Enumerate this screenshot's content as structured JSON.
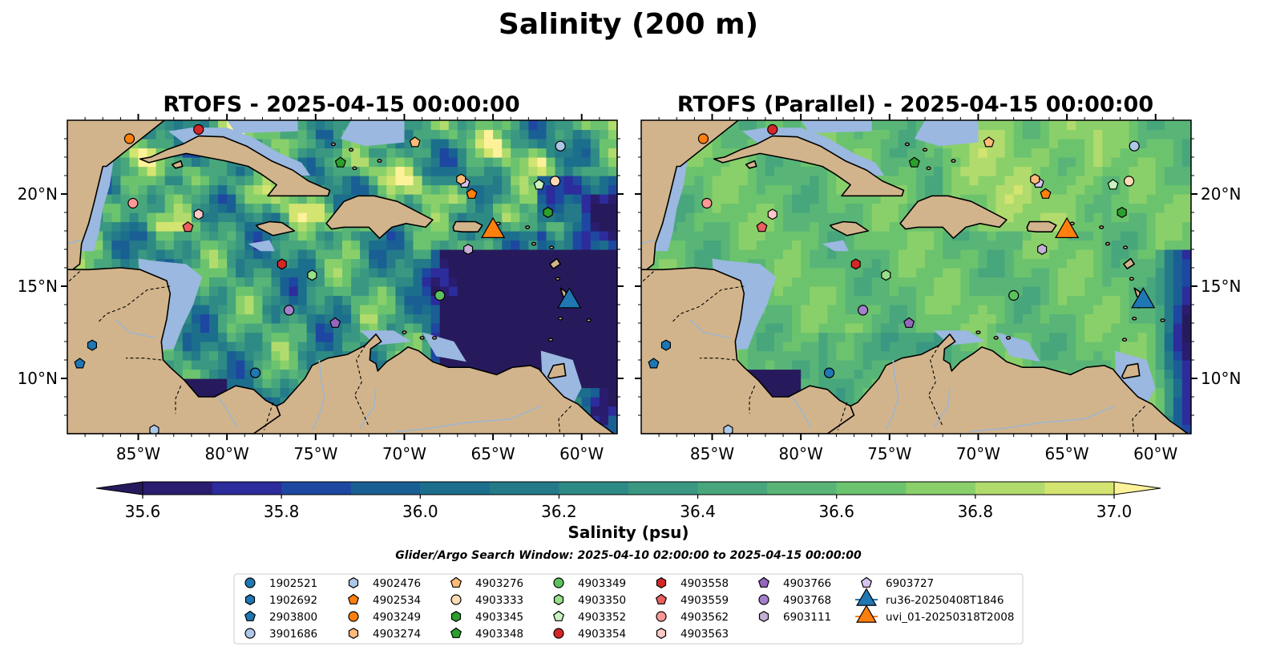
{
  "figure": {
    "title": "Salinity (200 m)",
    "search_window": "Glider/Argo Search Window: 2025-04-10 02:00:00 to 2025-04-15 00:00:00"
  },
  "colors": {
    "land": "#d2b48c",
    "shallow_water": "#9ab8e0",
    "coast": "#000000",
    "river": "#9fb6cc"
  },
  "colorbar": {
    "label": "Salinity (psu)",
    "min": 35.6,
    "max": 37.0,
    "step": 0.1,
    "ticks": [
      "35.6",
      "35.8",
      "36.0",
      "36.2",
      "36.4",
      "36.6",
      "36.8",
      "37.0"
    ],
    "colors": [
      "#2a1c6e",
      "#2c2c9c",
      "#1d47a0",
      "#1a5f94",
      "#1c6e8d",
      "#247a88",
      "#2e8a84",
      "#3a9882",
      "#48a67c",
      "#58b577",
      "#6cc36e",
      "#8ad06a",
      "#b1dc6d",
      "#d4e470"
    ],
    "under_color": "#271a5c",
    "over_color": "#fdf29a"
  },
  "chart_data": [
    {
      "type": "map",
      "title": "RTOFS - 2025-04-15 00:00:00",
      "variable": "Salinity (psu)",
      "depth_m": 200,
      "lon_range": [
        -89,
        -58
      ],
      "lat_range": [
        7,
        24
      ],
      "x_ticks": [
        "85°W",
        "80°W",
        "75°W",
        "70°W",
        "65°W",
        "60°W"
      ],
      "y_ticks": [
        "10°N",
        "15°N",
        "20°N"
      ],
      "y_tick_side": "left",
      "field_pattern": "low salinity (<35.6) east of 68°W south of 17°N; high (>36.8) filaments north of 18°N",
      "markers": [
        {
          "id": "3901686",
          "lon": -61.2,
          "lat": 22.6
        },
        {
          "id": "4903249",
          "lon": -85.5,
          "lat": 23.0
        },
        {
          "id": "4903354",
          "lon": -81.6,
          "lat": 23.5
        },
        {
          "id": "4903276",
          "lon": -69.4,
          "lat": 22.8
        },
        {
          "id": "4903348",
          "lon": -73.6,
          "lat": 21.7
        },
        {
          "id": "6903727",
          "lon": -66.6,
          "lat": 20.6
        },
        {
          "id": "4903274",
          "lon": -66.8,
          "lat": 20.8
        },
        {
          "id": "4902534",
          "lon": -66.2,
          "lat": 20.0
        },
        {
          "id": "4903352",
          "lon": -62.4,
          "lat": 20.5
        },
        {
          "id": "4903333",
          "lon": -61.5,
          "lat": 20.7
        },
        {
          "id": "4903345",
          "lon": -61.9,
          "lat": 19.0
        },
        {
          "id": "4903562",
          "lon": -85.3,
          "lat": 19.5
        },
        {
          "id": "4903563",
          "lon": -81.6,
          "lat": 18.9
        },
        {
          "id": "4903559",
          "lon": -82.2,
          "lat": 18.2
        },
        {
          "id": "4903558",
          "lon": -76.9,
          "lat": 16.2
        },
        {
          "id": "4903350",
          "lon": -75.2,
          "lat": 15.6
        },
        {
          "id": "6903111",
          "lon": -66.4,
          "lat": 17.0
        },
        {
          "id": "4903349",
          "lon": -68.0,
          "lat": 14.5
        },
        {
          "id": "4903768",
          "lon": -76.5,
          "lat": 13.7
        },
        {
          "id": "4903766",
          "lon": -73.9,
          "lat": 13.0
        },
        {
          "id": "1902521",
          "lon": -78.4,
          "lat": 10.3
        },
        {
          "id": "1902692",
          "lon": -87.6,
          "lat": 11.8
        },
        {
          "id": "2903800",
          "lon": -88.3,
          "lat": 10.8
        },
        {
          "id": "4902476",
          "lon": -84.1,
          "lat": 7.2
        },
        {
          "id": "uvi_01-20250318T2008",
          "lon": -65.0,
          "lat": 18.1
        },
        {
          "id": "ru36-20250408T1846",
          "lon": -60.7,
          "lat": 14.3
        }
      ]
    },
    {
      "type": "map",
      "title": "RTOFS (Parallel) - 2025-04-15 00:00:00",
      "variable": "Salinity (psu)",
      "depth_m": 200,
      "lon_range": [
        -89,
        -58
      ],
      "lat_range": [
        7,
        24
      ],
      "x_ticks": [
        "85°W",
        "80°W",
        "75°W",
        "70°W",
        "65°W",
        "60°W"
      ],
      "y_ticks": [
        "10°N",
        "15°N",
        "20°N"
      ],
      "y_tick_side": "right",
      "field_pattern": "smoother field, mostly 36.4-36.8; low salinity near eastern boundary and south-west corner",
      "markers": [
        {
          "id": "3901686",
          "lon": -61.2,
          "lat": 22.6
        },
        {
          "id": "4903249",
          "lon": -85.5,
          "lat": 23.0
        },
        {
          "id": "4903354",
          "lon": -81.6,
          "lat": 23.5
        },
        {
          "id": "4903276",
          "lon": -69.4,
          "lat": 22.8
        },
        {
          "id": "4903348",
          "lon": -73.6,
          "lat": 21.7
        },
        {
          "id": "6903727",
          "lon": -66.6,
          "lat": 20.6
        },
        {
          "id": "4903274",
          "lon": -66.8,
          "lat": 20.8
        },
        {
          "id": "4902534",
          "lon": -66.2,
          "lat": 20.0
        },
        {
          "id": "4903352",
          "lon": -62.4,
          "lat": 20.5
        },
        {
          "id": "4903333",
          "lon": -61.5,
          "lat": 20.7
        },
        {
          "id": "4903345",
          "lon": -61.9,
          "lat": 19.0
        },
        {
          "id": "4903562",
          "lon": -85.3,
          "lat": 19.5
        },
        {
          "id": "4903563",
          "lon": -81.6,
          "lat": 18.9
        },
        {
          "id": "4903559",
          "lon": -82.2,
          "lat": 18.2
        },
        {
          "id": "4903558",
          "lon": -76.9,
          "lat": 16.2
        },
        {
          "id": "4903350",
          "lon": -75.2,
          "lat": 15.6
        },
        {
          "id": "6903111",
          "lon": -66.4,
          "lat": 17.0
        },
        {
          "id": "4903349",
          "lon": -68.0,
          "lat": 14.5
        },
        {
          "id": "4903768",
          "lon": -76.5,
          "lat": 13.7
        },
        {
          "id": "4903766",
          "lon": -73.9,
          "lat": 13.0
        },
        {
          "id": "1902521",
          "lon": -78.4,
          "lat": 10.3
        },
        {
          "id": "1902692",
          "lon": -87.6,
          "lat": 11.8
        },
        {
          "id": "2903800",
          "lon": -88.3,
          "lat": 10.8
        },
        {
          "id": "4902476",
          "lon": -84.1,
          "lat": 7.2
        },
        {
          "id": "uvi_01-20250318T2008",
          "lon": -65.0,
          "lat": 18.1
        },
        {
          "id": "ru36-20250408T1846",
          "lon": -60.7,
          "lat": 14.3
        }
      ]
    }
  ],
  "legend": {
    "placement": "bottom-center",
    "columns": 7,
    "entries": [
      {
        "label": "1902521",
        "shape": "circle",
        "color": "#1f77b4"
      },
      {
        "label": "1902692",
        "shape": "hexagon",
        "color": "#1f77b4"
      },
      {
        "label": "2903800",
        "shape": "pentagon",
        "color": "#1f77b4"
      },
      {
        "label": "3901686",
        "shape": "circle",
        "color": "#aec7e8"
      },
      {
        "label": "4902476",
        "shape": "hexagon",
        "color": "#aec7e8"
      },
      {
        "label": "4902534",
        "shape": "pentagon",
        "color": "#ff7f0e"
      },
      {
        "label": "4903249",
        "shape": "circle",
        "color": "#ff7f0e"
      },
      {
        "label": "4903274",
        "shape": "hexagon",
        "color": "#ffbb78"
      },
      {
        "label": "4903276",
        "shape": "pentagon",
        "color": "#ffbb78"
      },
      {
        "label": "4903333",
        "shape": "circle",
        "color": "#ffdbb5"
      },
      {
        "label": "4903345",
        "shape": "hexagon",
        "color": "#2ca02c"
      },
      {
        "label": "4903348",
        "shape": "pentagon",
        "color": "#2ca02c"
      },
      {
        "label": "4903349",
        "shape": "circle",
        "color": "#5dc25d"
      },
      {
        "label": "4903350",
        "shape": "hexagon",
        "color": "#98df8a"
      },
      {
        "label": "4903352",
        "shape": "pentagon",
        "color": "#c9f2c0"
      },
      {
        "label": "4903354",
        "shape": "circle",
        "color": "#d62728"
      },
      {
        "label": "4903558",
        "shape": "hexagon",
        "color": "#d62728"
      },
      {
        "label": "4903559",
        "shape": "pentagon",
        "color": "#e8605f"
      },
      {
        "label": "4903562",
        "shape": "circle",
        "color": "#ff9896"
      },
      {
        "label": "4903563",
        "shape": "hexagon",
        "color": "#ffc9c7"
      },
      {
        "label": "4903766",
        "shape": "pentagon",
        "color": "#9467bd"
      },
      {
        "label": "4903768",
        "shape": "circle",
        "color": "#a57fcc"
      },
      {
        "label": "6903111",
        "shape": "hexagon",
        "color": "#c5b0d5"
      },
      {
        "label": "6903727",
        "shape": "pentagon",
        "color": "#d7c4ef"
      },
      {
        "label": "ru36-20250408T1846",
        "shape": "triangle",
        "color": "#1f77b4"
      },
      {
        "label": "uvi_01-20250318T2008",
        "shape": "triangle",
        "color": "#ff7f0e"
      }
    ]
  }
}
